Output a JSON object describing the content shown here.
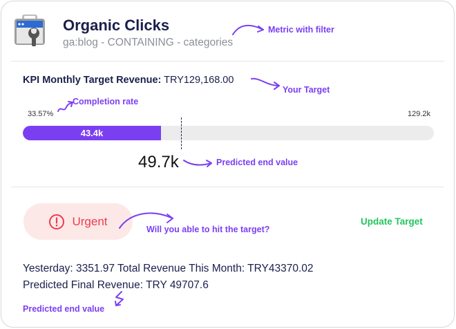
{
  "header": {
    "title": "Organic Clicks",
    "subtitle": "ga:blog - CONTAINING - categories",
    "annotation": "Metric with filter"
  },
  "kpi": {
    "label": "KPI Monthly Target Revenue:",
    "value": "TRY129,168.00",
    "annotation": "Your Target"
  },
  "progress": {
    "completion_annotation": "Completion rate",
    "percent_label": "33.57%",
    "fraction": 0.3357,
    "current_label": "43.4k",
    "max_label": "129.2k",
    "predicted_value": "49.7k",
    "predicted_fraction": 0.3848,
    "predicted_annotation": "Predicted end value"
  },
  "status": {
    "label": "Urgent",
    "annotation": "Will you able to hit the target?",
    "update_label": "Update Target"
  },
  "stats": {
    "line1": "Yesterday: 3351.97 Total Revenue This Month: TRY43370.02",
    "line2": "Predicted Final Revenue: TRY 49707.6",
    "annotation": "Predicted end value"
  },
  "colors": {
    "accent": "#7b3ff2",
    "urgent": "#ec3c4a",
    "urgent_bg": "#fde8e8",
    "success": "#22c55e"
  },
  "icons": {
    "logo": "toolbox-wrench-icon",
    "urgent": "alert-circle-icon"
  }
}
